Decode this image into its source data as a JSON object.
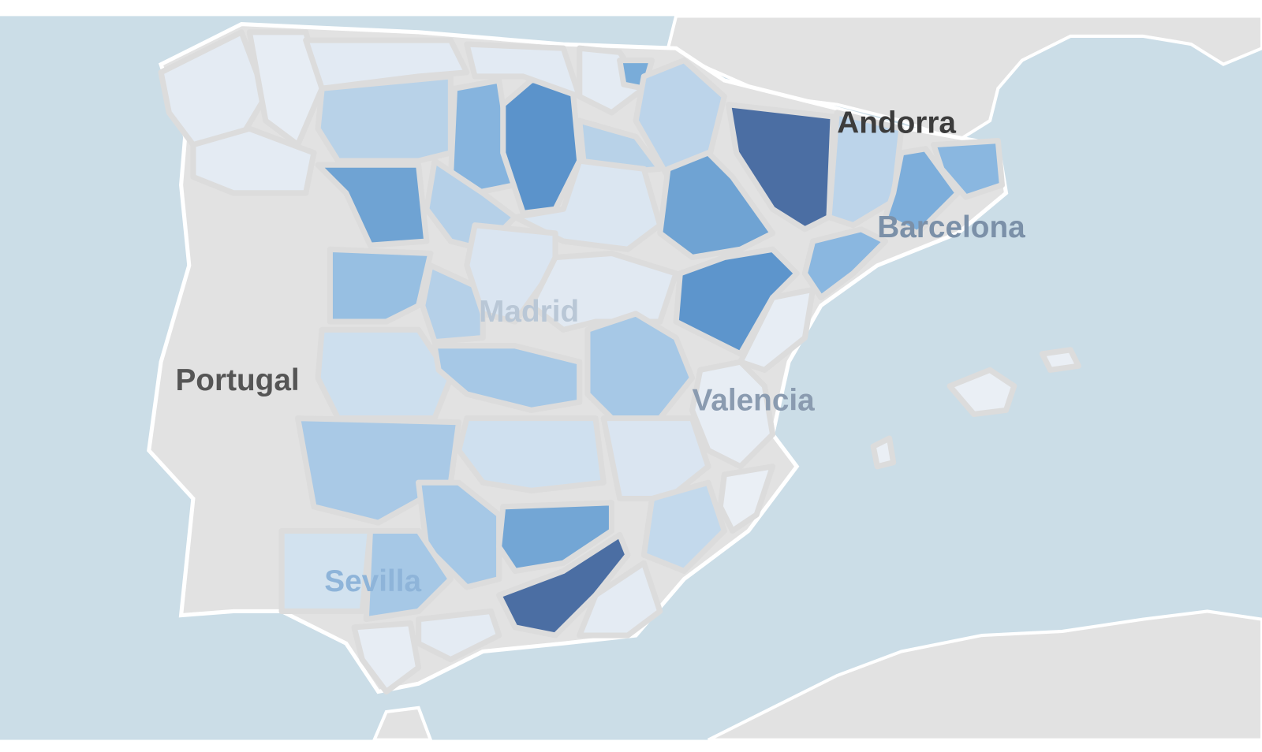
{
  "map": {
    "labels": [
      "Andorra",
      "Barcelona",
      "Madrid",
      "Portugal",
      "Valencia",
      "Sevilla"
    ]
  }
}
